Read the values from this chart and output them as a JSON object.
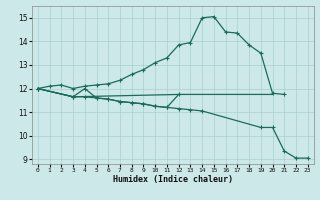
{
  "xlabel": "Humidex (Indice chaleur)",
  "xlim": [
    -0.5,
    23.5
  ],
  "ylim": [
    8.8,
    15.5
  ],
  "xticks": [
    0,
    1,
    2,
    3,
    4,
    5,
    6,
    7,
    8,
    9,
    10,
    11,
    12,
    13,
    14,
    15,
    16,
    17,
    18,
    19,
    20,
    21,
    22,
    23
  ],
  "yticks": [
    9,
    10,
    11,
    12,
    13,
    14,
    15
  ],
  "bg_color": "#cce8e8",
  "line_color": "#1a6b5a",
  "s0_x": [
    0,
    1,
    2,
    3,
    4,
    5,
    6,
    7,
    8,
    9,
    10,
    11,
    12,
    13,
    14,
    15,
    16,
    17,
    18,
    19,
    20,
    21
  ],
  "s0_y": [
    12.0,
    12.1,
    12.15,
    12.0,
    12.1,
    12.15,
    12.2,
    12.35,
    12.6,
    12.8,
    13.1,
    13.3,
    13.85,
    13.95,
    15.0,
    15.05,
    14.4,
    14.35,
    13.85,
    13.5,
    11.8,
    11.75
  ],
  "s1_x": [
    0,
    3,
    4,
    5,
    6,
    7,
    8,
    9,
    10,
    11,
    12,
    13,
    14,
    19,
    20,
    21,
    22,
    23
  ],
  "s1_y": [
    12.0,
    11.65,
    11.65,
    11.6,
    11.55,
    11.45,
    11.4,
    11.35,
    11.25,
    11.2,
    11.15,
    11.1,
    11.05,
    10.35,
    10.35,
    9.35,
    9.05,
    9.05
  ],
  "s2_x": [
    0,
    3,
    4,
    5,
    6,
    7,
    8,
    9,
    10,
    11,
    12
  ],
  "s2_y": [
    12.0,
    11.65,
    12.0,
    11.6,
    11.55,
    11.45,
    11.4,
    11.35,
    11.25,
    11.2,
    11.75
  ],
  "s3_x": [
    0,
    3,
    12,
    13,
    14,
    15,
    16,
    17,
    18,
    19,
    20
  ],
  "s3_y": [
    12.0,
    11.65,
    11.75,
    11.75,
    11.75,
    11.75,
    11.75,
    11.75,
    11.75,
    11.75,
    11.75
  ]
}
